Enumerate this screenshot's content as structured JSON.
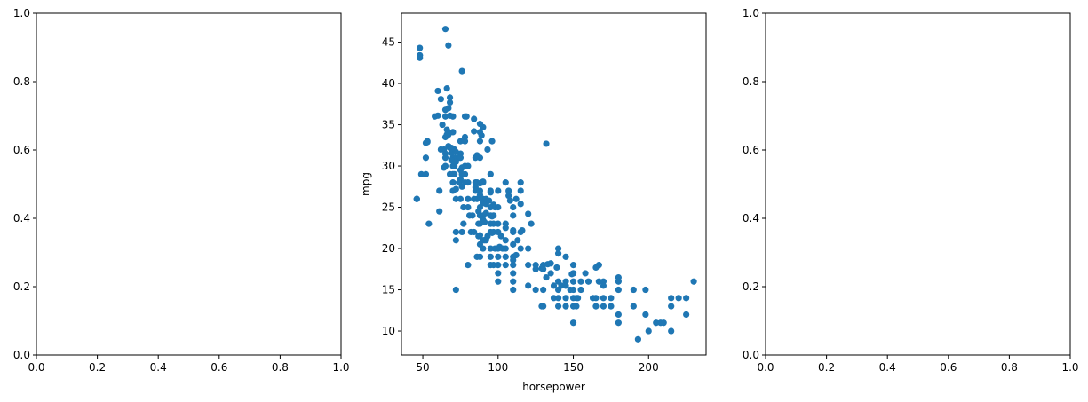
{
  "chart_data": [
    {
      "type": "empty",
      "xlim": [
        0,
        1
      ],
      "ylim": [
        0,
        1
      ],
      "xticks": [
        "0.0",
        "0.2",
        "0.4",
        "0.6",
        "0.8",
        "1.0"
      ],
      "yticks": [
        "0.0",
        "0.2",
        "0.4",
        "0.6",
        "0.8",
        "1.0"
      ],
      "xlabel": "",
      "ylabel": ""
    },
    {
      "type": "scatter",
      "xlabel": "horsepower",
      "ylabel": "mpg",
      "xlim": [
        35.8,
        238.2
      ],
      "ylim": [
        7.1,
        48.5
      ],
      "xticks": [
        "50",
        "100",
        "150",
        "200"
      ],
      "yticks": [
        "10",
        "15",
        "20",
        "25",
        "30",
        "35",
        "40",
        "45"
      ],
      "color": "#1f77b4",
      "points": [
        [
          46,
          26
        ],
        [
          46,
          26
        ],
        [
          48,
          43.4
        ],
        [
          48,
          44.3
        ],
        [
          48,
          43.1
        ],
        [
          49,
          29
        ],
        [
          52,
          29
        ],
        [
          52,
          31
        ],
        [
          52,
          32.8
        ],
        [
          53,
          33
        ],
        [
          53,
          32.9
        ],
        [
          54,
          23
        ],
        [
          58,
          36
        ],
        [
          60,
          36.1
        ],
        [
          60,
          39.1
        ],
        [
          61,
          27
        ],
        [
          61,
          24.5
        ],
        [
          62,
          38.1
        ],
        [
          62,
          32
        ],
        [
          63,
          35
        ],
        [
          64,
          29.8
        ],
        [
          64,
          32
        ],
        [
          65,
          46.6
        ],
        [
          65,
          36
        ],
        [
          65,
          31
        ],
        [
          65,
          30
        ],
        [
          66,
          39.4
        ],
        [
          67,
          37
        ],
        [
          67,
          33.8
        ],
        [
          67,
          44.6
        ],
        [
          67,
          32.4
        ],
        [
          68,
          37.7
        ],
        [
          68,
          36.1
        ],
        [
          68,
          38.3
        ],
        [
          68,
          32.2
        ],
        [
          68,
          29
        ],
        [
          69,
          32.2
        ],
        [
          70,
          36
        ],
        [
          70,
          34.1
        ],
        [
          70,
          31
        ],
        [
          70,
          30
        ],
        [
          70,
          28
        ],
        [
          71,
          32
        ],
        [
          71,
          31
        ],
        [
          72,
          26
        ],
        [
          72,
          27.2
        ],
        [
          72,
          22
        ],
        [
          72,
          21
        ],
        [
          72,
          15
        ],
        [
          74,
          31
        ],
        [
          75,
          31.5
        ],
        [
          75,
          31
        ],
        [
          75,
          29.5
        ],
        [
          75,
          33
        ],
        [
          75,
          26
        ],
        [
          76,
          29
        ],
        [
          76,
          41.5
        ],
        [
          76,
          22
        ],
        [
          78,
          36
        ],
        [
          78,
          30
        ],
        [
          80,
          30
        ],
        [
          80,
          26
        ],
        [
          80,
          18
        ],
        [
          81,
          24
        ],
        [
          82,
          22
        ],
        [
          83,
          24
        ],
        [
          84,
          22
        ],
        [
          85,
          28
        ],
        [
          85,
          27
        ],
        [
          86,
          26
        ],
        [
          86,
          19
        ],
        [
          87,
          23
        ],
        [
          88,
          31
        ],
        [
          88,
          27
        ],
        [
          88,
          25
        ],
        [
          88,
          23
        ],
        [
          88,
          20.5
        ],
        [
          88,
          19
        ],
        [
          88,
          26.5
        ],
        [
          88,
          33
        ],
        [
          90,
          28
        ],
        [
          90,
          26
        ],
        [
          90,
          24
        ],
        [
          90,
          20
        ],
        [
          91,
          21
        ],
        [
          92,
          26
        ],
        [
          92,
          21
        ],
        [
          93,
          32
        ],
        [
          95,
          27
        ],
        [
          95,
          25
        ],
        [
          95,
          24
        ],
        [
          95,
          23
        ],
        [
          95,
          22
        ],
        [
          95,
          20
        ],
        [
          95,
          19
        ],
        [
          95,
          18
        ],
        [
          96,
          33
        ],
        [
          97,
          24
        ],
        [
          97,
          22
        ],
        [
          97,
          18
        ],
        [
          98,
          20
        ],
        [
          100,
          22
        ],
        [
          100,
          20
        ],
        [
          100,
          19
        ],
        [
          100,
          18
        ],
        [
          100,
          17
        ],
        [
          100,
          16
        ],
        [
          105,
          20
        ],
        [
          105,
          18
        ],
        [
          105,
          19
        ],
        [
          107,
          27
        ],
        [
          110,
          24
        ],
        [
          110,
          22
        ],
        [
          110,
          19
        ],
        [
          110,
          18
        ],
        [
          110,
          17
        ],
        [
          110,
          16
        ],
        [
          110,
          15
        ],
        [
          112,
          26
        ],
        [
          113,
          21
        ],
        [
          115,
          27
        ],
        [
          115,
          22
        ],
        [
          115,
          20
        ],
        [
          115,
          28
        ],
        [
          120,
          18
        ],
        [
          120,
          15.5
        ],
        [
          122,
          23
        ],
        [
          125,
          15
        ],
        [
          125,
          18
        ],
        [
          129,
          13
        ],
        [
          130,
          15
        ],
        [
          130,
          13
        ],
        [
          130,
          18
        ],
        [
          132,
          32.7
        ],
        [
          135,
          17
        ],
        [
          137,
          14
        ],
        [
          140,
          20
        ],
        [
          140,
          16
        ],
        [
          140,
          15
        ],
        [
          140,
          14
        ],
        [
          140,
          13
        ],
        [
          145,
          14
        ],
        [
          145,
          16
        ],
        [
          145,
          19
        ],
        [
          145,
          13
        ],
        [
          148,
          15
        ],
        [
          149,
          16.9
        ],
        [
          150,
          15
        ],
        [
          150,
          14
        ],
        [
          150,
          13
        ],
        [
          150,
          17
        ],
        [
          150,
          11
        ],
        [
          150,
          18
        ],
        [
          150,
          16
        ],
        [
          152,
          14
        ],
        [
          152,
          13
        ],
        [
          153,
          14
        ],
        [
          155,
          16
        ],
        [
          158,
          17
        ],
        [
          160,
          16
        ],
        [
          163,
          14
        ],
        [
          165,
          14
        ],
        [
          165,
          13
        ],
        [
          167,
          18
        ],
        [
          167,
          16
        ],
        [
          170,
          14
        ],
        [
          170,
          13
        ],
        [
          170,
          16
        ],
        [
          175,
          14
        ],
        [
          175,
          13
        ],
        [
          180,
          12
        ],
        [
          180,
          16
        ],
        [
          180,
          15
        ],
        [
          180,
          11
        ],
        [
          190,
          15
        ],
        [
          190,
          13
        ],
        [
          193,
          9
        ],
        [
          198,
          15
        ],
        [
          198,
          12
        ],
        [
          200,
          10
        ],
        [
          205,
          11
        ],
        [
          208,
          11
        ],
        [
          210,
          11
        ],
        [
          215,
          14
        ],
        [
          215,
          13
        ],
        [
          215,
          10
        ],
        [
          220,
          14
        ],
        [
          225,
          14
        ],
        [
          225,
          12
        ],
        [
          230,
          16
        ],
        [
          46,
          26
        ],
        [
          48,
          43.4
        ],
        [
          65,
          36.8
        ],
        [
          65,
          33.5
        ],
        [
          65,
          31.5
        ],
        [
          66,
          34.4
        ],
        [
          66,
          33.8
        ],
        [
          67,
          34
        ],
        [
          69,
          32.1
        ],
        [
          69,
          31.6
        ],
        [
          69,
          30.7
        ],
        [
          70,
          29
        ],
        [
          70,
          27
        ],
        [
          71,
          30
        ],
        [
          71,
          29
        ],
        [
          72,
          31.7
        ],
        [
          72,
          30.5
        ],
        [
          74,
          28
        ],
        [
          75,
          28.4
        ],
        [
          76,
          29.8
        ],
        [
          76,
          27.5
        ],
        [
          77,
          23
        ],
        [
          77,
          25
        ],
        [
          78,
          33
        ],
        [
          78,
          28
        ],
        [
          78,
          29
        ],
        [
          78,
          33.5
        ],
        [
          79,
          36
        ],
        [
          80,
          25
        ],
        [
          80,
          28
        ],
        [
          84,
          34.2
        ],
        [
          84,
          35.7
        ],
        [
          84,
          26
        ],
        [
          85,
          27.4
        ],
        [
          85,
          31
        ],
        [
          86,
          31.3
        ],
        [
          86,
          28
        ],
        [
          87,
          21.5
        ],
        [
          87,
          24.5
        ],
        [
          88,
          34.1
        ],
        [
          88,
          35.1
        ],
        [
          88,
          27.9
        ],
        [
          88,
          24
        ],
        [
          88,
          21.6
        ],
        [
          89,
          33.7
        ],
        [
          90,
          34.7
        ],
        [
          90,
          28.1
        ],
        [
          90,
          25.5
        ],
        [
          90,
          21
        ],
        [
          90,
          23.5
        ],
        [
          91,
          23.2
        ],
        [
          92,
          25.4
        ],
        [
          92,
          21.1
        ],
        [
          92,
          24.3
        ],
        [
          93,
          21.5
        ],
        [
          94,
          25.8
        ],
        [
          95,
          29
        ],
        [
          95,
          26.8
        ],
        [
          96,
          23.9
        ],
        [
          96,
          21.9
        ],
        [
          97,
          25.3
        ],
        [
          97,
          23
        ],
        [
          98,
          25
        ],
        [
          100,
          27
        ],
        [
          100,
          25
        ],
        [
          100,
          23
        ],
        [
          101,
          20.2
        ],
        [
          102,
          21.5
        ],
        [
          103,
          20
        ],
        [
          105,
          23
        ],
        [
          105,
          22.5
        ],
        [
          105,
          21
        ],
        [
          105,
          28
        ],
        [
          107,
          26.4
        ],
        [
          108,
          25.8
        ],
        [
          110,
          25
        ],
        [
          110,
          20.5
        ],
        [
          110,
          22.2
        ],
        [
          110,
          18.6
        ],
        [
          112,
          19.2
        ],
        [
          115,
          25.4
        ],
        [
          116,
          22.2
        ],
        [
          120,
          24.2
        ],
        [
          120,
          20
        ],
        [
          125,
          17.5
        ],
        [
          129,
          17.6
        ],
        [
          130,
          17.5
        ],
        [
          132,
          16.5
        ],
        [
          133,
          18.1
        ],
        [
          135,
          18.2
        ],
        [
          137,
          15.5
        ],
        [
          139,
          17.7
        ],
        [
          140,
          19.4
        ],
        [
          142,
          15.5
        ],
        [
          145,
          15.5
        ],
        [
          150,
          17
        ],
        [
          155,
          15
        ],
        [
          165,
          17.7
        ],
        [
          170,
          15.5
        ],
        [
          180,
          16.5
        ]
      ]
    },
    {
      "type": "empty",
      "xlim": [
        0,
        1
      ],
      "ylim": [
        0,
        1
      ],
      "xticks": [
        "0.0",
        "0.2",
        "0.4",
        "0.6",
        "0.8",
        "1.0"
      ],
      "yticks": [
        "0.0",
        "0.2",
        "0.4",
        "0.6",
        "0.8",
        "1.0"
      ],
      "xlabel": "",
      "ylabel": ""
    }
  ]
}
